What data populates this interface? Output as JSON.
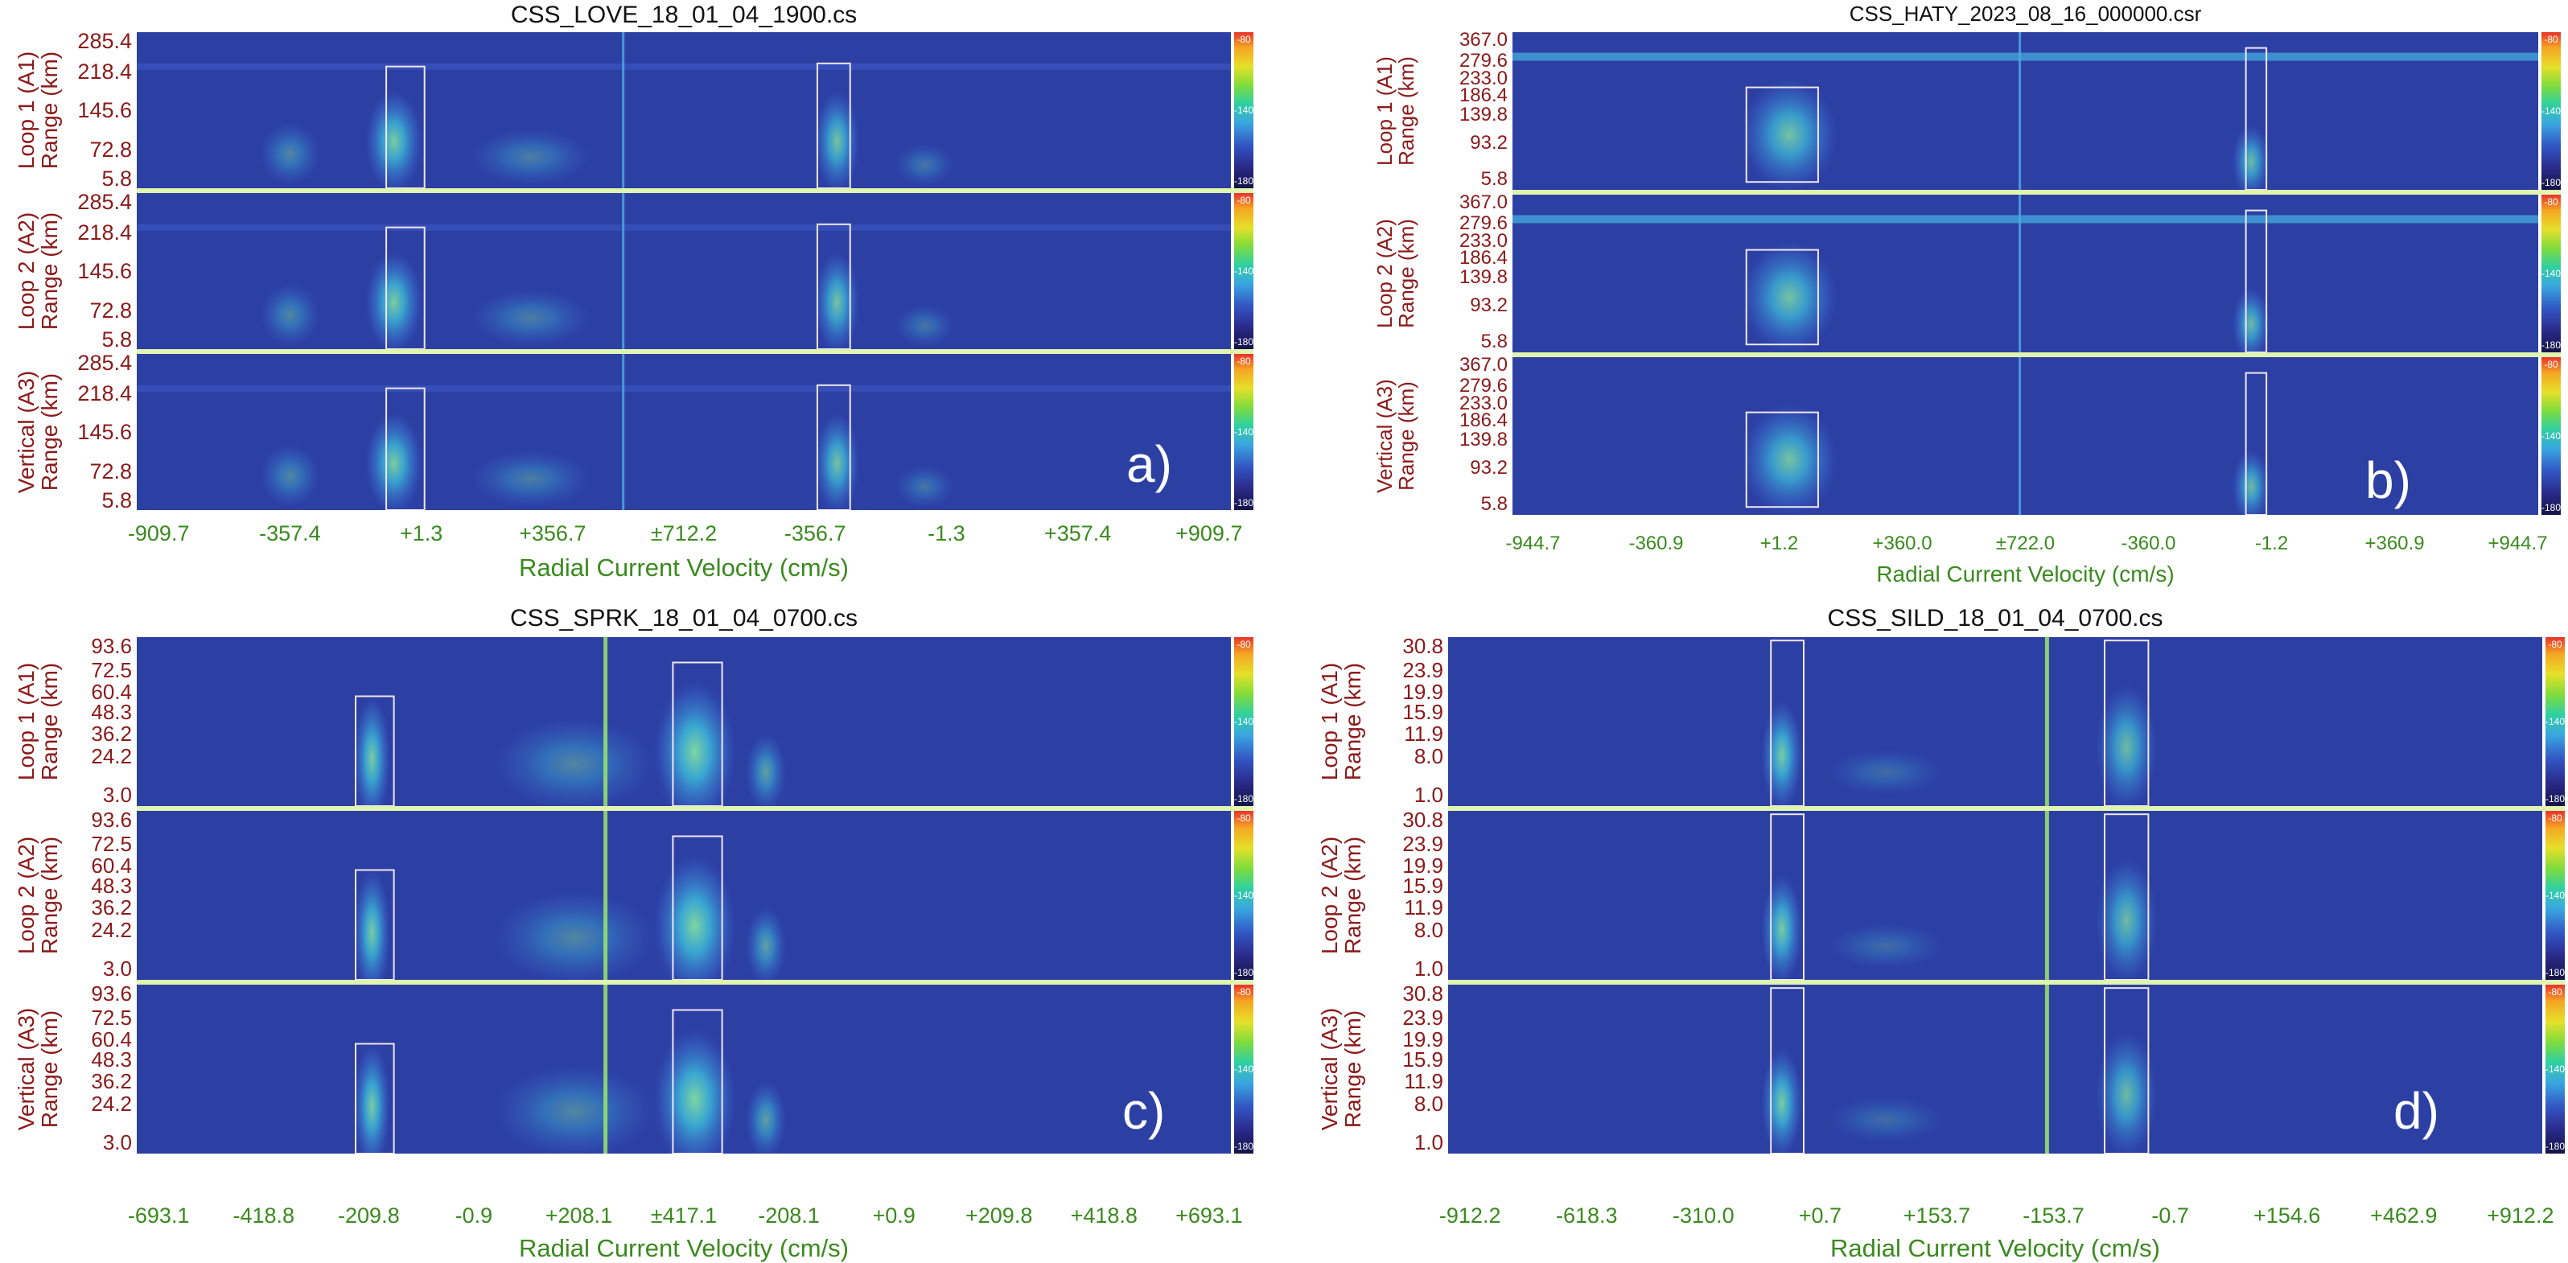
{
  "colors": {
    "background": "#ffffff",
    "axis_label": "#8b1a1a",
    "x_axis": "#3a8a1e",
    "separator": "#dff5b0"
  },
  "panels": [
    {
      "id": "a",
      "title": "CSS_LOVE_18_01_04_1900.cs",
      "letter": "a)",
      "xlabel": "Radial Current Velocity (cm/s)",
      "xticks": [
        "-909.7",
        "-357.4",
        "+1.3",
        "+356.7",
        "±712.2",
        "-356.7",
        "-1.3",
        "+357.4",
        "+909.7"
      ],
      "colorbar": {
        "top": "-80",
        "mid": "-140",
        "bottom": "-180"
      },
      "rows": [
        {
          "ylabel": "Loop 1 (A1)",
          "ylabel2": "Range (km)",
          "yticks": [
            "285.4",
            "218.4",
            "145.6",
            "72.8",
            "5.8"
          ]
        },
        {
          "ylabel": "Loop 2 (A2)",
          "ylabel2": "Range (km)",
          "yticks": [
            "285.4",
            "218.4",
            "145.6",
            "72.8",
            "5.8"
          ]
        },
        {
          "ylabel": "Vertical (A3)",
          "ylabel2": "Range (km)",
          "yticks": [
            "285.4",
            "218.4",
            "145.6",
            "72.8",
            "5.8"
          ]
        }
      ]
    },
    {
      "id": "b",
      "title": "CSS_HATY_2023_08_16_000000.csr",
      "letter": "b)",
      "xlabel": "Radial Current Velocity (cm/s)",
      "xticks": [
        "-944.7",
        "-360.9",
        "+1.2",
        "+360.0",
        "±722.0",
        "-360.0",
        "-1.2",
        "+360.9",
        "+944.7"
      ],
      "colorbar": {
        "top": "-80",
        "mid": "-140",
        "bottom": "-180"
      },
      "rows": [
        {
          "ylabel": "Loop 1 (A1)",
          "ylabel2": "Range (km)",
          "yticks": [
            "367.0",
            "279.6",
            "233.0",
            "186.4",
            "139.8",
            "93.2",
            "5.8"
          ]
        },
        {
          "ylabel": "Loop 2 (A2)",
          "ylabel2": "Range (km)",
          "yticks": [
            "367.0",
            "279.6",
            "233.0",
            "186.4",
            "139.8",
            "93.2",
            "5.8"
          ]
        },
        {
          "ylabel": "Vertical (A3)",
          "ylabel2": "Range (km)",
          "yticks": [
            "367.0",
            "279.6",
            "233.0",
            "186.4",
            "139.8",
            "93.2",
            "5.8"
          ]
        }
      ]
    },
    {
      "id": "c",
      "title": "CSS_SPRK_18_01_04_0700.cs",
      "letter": "c)",
      "xlabel": "Radial Current Velocity (cm/s)",
      "xticks": [
        "-693.1",
        "-418.8",
        "-209.8",
        "-0.9",
        "+208.1",
        "±417.1",
        "-208.1",
        "+0.9",
        "+209.8",
        "+418.8",
        "+693.1"
      ],
      "colorbar": {
        "top": "-80",
        "mid": "-140",
        "bottom": "-180"
      },
      "rows": [
        {
          "ylabel": "Loop 1 (A1)",
          "ylabel2": "Range (km)",
          "yticks": [
            "93.6",
            "72.5",
            "60.4",
            "48.3",
            "36.2",
            "24.2",
            "3.0"
          ]
        },
        {
          "ylabel": "Loop 2 (A2)",
          "ylabel2": "Range (km)",
          "yticks": [
            "93.6",
            "72.5",
            "60.4",
            "48.3",
            "36.2",
            "24.2",
            "3.0"
          ]
        },
        {
          "ylabel": "Vertical (A3)",
          "ylabel2": "Range (km)",
          "yticks": [
            "93.6",
            "72.5",
            "60.4",
            "48.3",
            "36.2",
            "24.2",
            "3.0"
          ]
        }
      ]
    },
    {
      "id": "d",
      "title": "CSS_SILD_18_01_04_0700.cs",
      "letter": "d)",
      "xlabel": "Radial Current Velocity (cm/s)",
      "xticks": [
        "-912.2",
        "-618.3",
        "-310.0",
        "+0.7",
        "+153.7",
        "-153.7",
        "-0.7",
        "+154.6",
        "+462.9",
        "+912.2"
      ],
      "colorbar": {
        "top": "-80",
        "mid": "-140",
        "bottom": "-180"
      },
      "rows": [
        {
          "ylabel": "Loop 1 (A1)",
          "ylabel2": "Range (km)",
          "yticks": [
            "30.8",
            "23.9",
            "19.9",
            "15.9",
            "11.9",
            "8.0",
            "1.0"
          ]
        },
        {
          "ylabel": "Loop 2 (A2)",
          "ylabel2": "Range (km)",
          "yticks": [
            "30.8",
            "23.9",
            "19.9",
            "15.9",
            "11.9",
            "8.0",
            "1.0"
          ]
        },
        {
          "ylabel": "Vertical (A3)",
          "ylabel2": "Range (km)",
          "yticks": [
            "30.8",
            "23.9",
            "19.9",
            "15.9",
            "11.9",
            "8.0",
            "1.0"
          ]
        }
      ]
    }
  ],
  "chart_data": [
    {
      "type": "heatmap",
      "title": "CSS_LOVE_18_01_04_1900.cs",
      "xlabel": "Radial Current Velocity (cm/s)",
      "ylabel": "Range (km)",
      "xticks": [
        "-909.7",
        "-357.4",
        "+1.3",
        "+356.7",
        "±712.2",
        "-356.7",
        "-1.3",
        "+357.4",
        "+909.7"
      ],
      "yticks": [
        "285.4",
        "218.4",
        "145.6",
        "72.8",
        "5.8"
      ],
      "ylim": [
        5.8,
        285.4
      ],
      "colorbar": {
        "min": -180,
        "max": -80,
        "ticks": [
          -80,
          -140,
          -180
        ]
      },
      "series": [
        {
          "name": "Loop 1 (A1)"
        },
        {
          "name": "Loop 2 (A2)"
        },
        {
          "name": "Vertical (A3)"
        }
      ]
    },
    {
      "type": "heatmap",
      "title": "CSS_HATY_2023_08_16_000000.csr",
      "xlabel": "Radial Current Velocity (cm/s)",
      "ylabel": "Range (km)",
      "xticks": [
        "-944.7",
        "-360.9",
        "+1.2",
        "+360.0",
        "±722.0",
        "-360.0",
        "-1.2",
        "+360.9",
        "+944.7"
      ],
      "yticks": [
        "367.0",
        "279.6",
        "233.0",
        "186.4",
        "139.8",
        "93.2",
        "5.8"
      ],
      "ylim": [
        5.8,
        367.0
      ],
      "colorbar": {
        "min": -180,
        "max": -80,
        "ticks": [
          -80,
          -140,
          -180
        ]
      },
      "series": [
        {
          "name": "Loop 1 (A1)"
        },
        {
          "name": "Loop 2 (A2)"
        },
        {
          "name": "Vertical (A3)"
        }
      ]
    },
    {
      "type": "heatmap",
      "title": "CSS_SPRK_18_01_04_0700.cs",
      "xlabel": "Radial Current Velocity (cm/s)",
      "ylabel": "Range (km)",
      "xticks": [
        "-693.1",
        "-418.8",
        "-209.8",
        "-0.9",
        "+208.1",
        "±417.1",
        "-208.1",
        "+0.9",
        "+209.8",
        "+418.8",
        "+693.1"
      ],
      "yticks": [
        "93.6",
        "72.5",
        "60.4",
        "48.3",
        "36.2",
        "24.2",
        "3.0"
      ],
      "ylim": [
        3.0,
        93.6
      ],
      "colorbar": {
        "min": -180,
        "max": -80,
        "ticks": [
          -80,
          -140,
          -180
        ]
      },
      "series": [
        {
          "name": "Loop 1 (A1)"
        },
        {
          "name": "Loop 2 (A2)"
        },
        {
          "name": "Vertical (A3)"
        }
      ]
    },
    {
      "type": "heatmap",
      "title": "CSS_SILD_18_01_04_0700.cs",
      "xlabel": "Radial Current Velocity (cm/s)",
      "ylabel": "Range (km)",
      "xticks": [
        "-912.2",
        "-618.3",
        "-310.0",
        "+0.7",
        "+153.7",
        "-153.7",
        "-0.7",
        "+154.6",
        "+462.9",
        "+912.2"
      ],
      "yticks": [
        "30.8",
        "23.9",
        "19.9",
        "15.9",
        "11.9",
        "8.0",
        "1.0"
      ],
      "ylim": [
        1.0,
        30.8
      ],
      "colorbar": {
        "min": -180,
        "max": -80,
        "ticks": [
          -80,
          -140,
          -180
        ]
      },
      "series": [
        {
          "name": "Loop 1 (A1)"
        },
        {
          "name": "Loop 2 (A2)"
        },
        {
          "name": "Vertical (A3)"
        }
      ]
    }
  ]
}
